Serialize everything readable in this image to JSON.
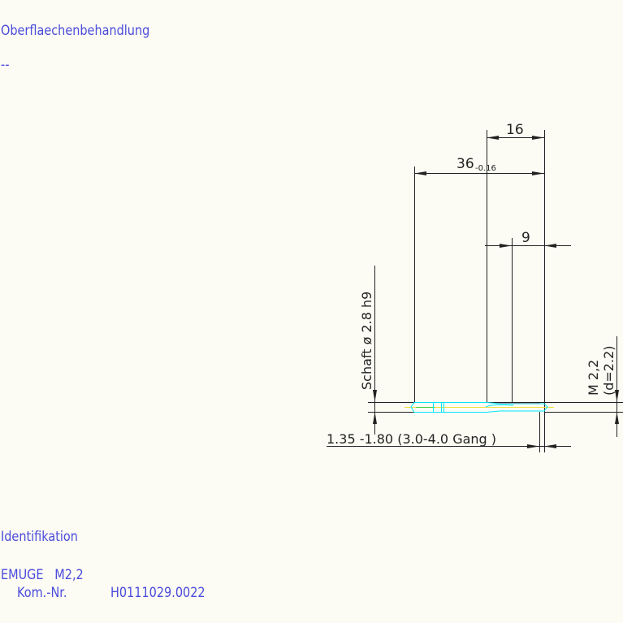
{
  "header": {
    "title": "Oberflaechenbehandlung",
    "value": "--"
  },
  "drawing": {
    "dim_total": "36",
    "dim_total_tolerance": "-0.16",
    "dim_16": "16",
    "dim_9": "9",
    "shank_label": "Schaft  ø 2.8  h9",
    "thread_label": "M 2,2",
    "thread_d_label": "(d=2.2)",
    "bottom_label": "1.35 -1.80 (3.0-4.0 Gang  )",
    "colors": {
      "line": "#222222",
      "part": "#00e5ff",
      "axis": "#f0e040",
      "accent_green": "#40d040",
      "accent_red": "#ff6060"
    }
  },
  "footer": {
    "section": "Identifikation",
    "maker": "EMUGE   M2,2",
    "kom_label": "Kom.-Nr.",
    "kom_value": "H0111029.0022"
  }
}
